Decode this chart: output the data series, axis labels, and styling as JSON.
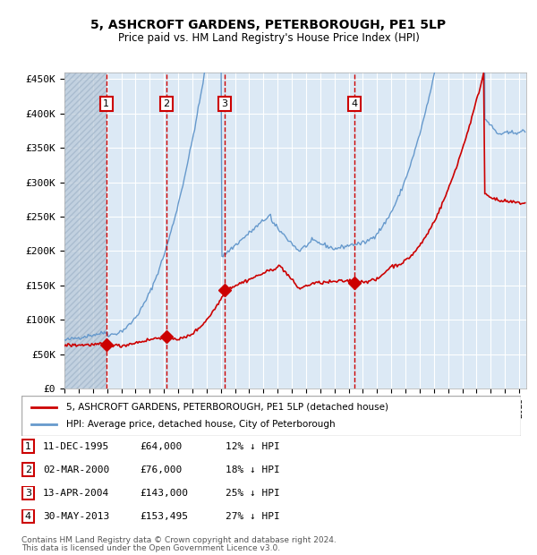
{
  "title1": "5, ASHCROFT GARDENS, PETERBOROUGH, PE1 5LP",
  "title2": "Price paid vs. HM Land Registry's House Price Index (HPI)",
  "ylabel_ticks": [
    "£0",
    "£50K",
    "£100K",
    "£150K",
    "£200K",
    "£250K",
    "£300K",
    "£350K",
    "£400K",
    "£450K"
  ],
  "ytick_values": [
    0,
    50000,
    100000,
    150000,
    200000,
    250000,
    300000,
    350000,
    400000,
    450000
  ],
  "ylim": [
    0,
    460000
  ],
  "xlim_start": 1993.0,
  "xlim_end": 2025.5,
  "bg_color": "#dce9f5",
  "plot_bg": "#dce9f5",
  "hatch_color": "#b0c4d8",
  "red_line_color": "#cc0000",
  "blue_line_color": "#6699cc",
  "sale_marker_color": "#cc0000",
  "vline_color": "#cc0000",
  "box_edge_color": "#cc0000",
  "grid_color": "#ffffff",
  "legend_border_color": "#aaaaaa",
  "footer_color": "#555555",
  "transactions": [
    {
      "num": 1,
      "date": 1995.94,
      "price": 64000,
      "label": "11-DEC-1995",
      "price_str": "£64,000",
      "hpi_str": "12% ↓ HPI"
    },
    {
      "num": 2,
      "date": 2000.16,
      "price": 76000,
      "label": "02-MAR-2000",
      "price_str": "£76,000",
      "hpi_str": "18% ↓ HPI"
    },
    {
      "num": 3,
      "date": 2004.27,
      "price": 143000,
      "label": "13-APR-2004",
      "price_str": "£143,000",
      "hpi_str": "25% ↓ HPI"
    },
    {
      "num": 4,
      "date": 2013.41,
      "price": 153495,
      "label": "30-MAY-2013",
      "price_str": "£153,495",
      "hpi_str": "27% ↓ HPI"
    }
  ],
  "legend1": "5, ASHCROFT GARDENS, PETERBOROUGH, PE1 5LP (detached house)",
  "legend2": "HPI: Average price, detached house, City of Peterborough",
  "footer1": "Contains HM Land Registry data © Crown copyright and database right 2024.",
  "footer2": "This data is licensed under the Open Government Licence v3.0."
}
